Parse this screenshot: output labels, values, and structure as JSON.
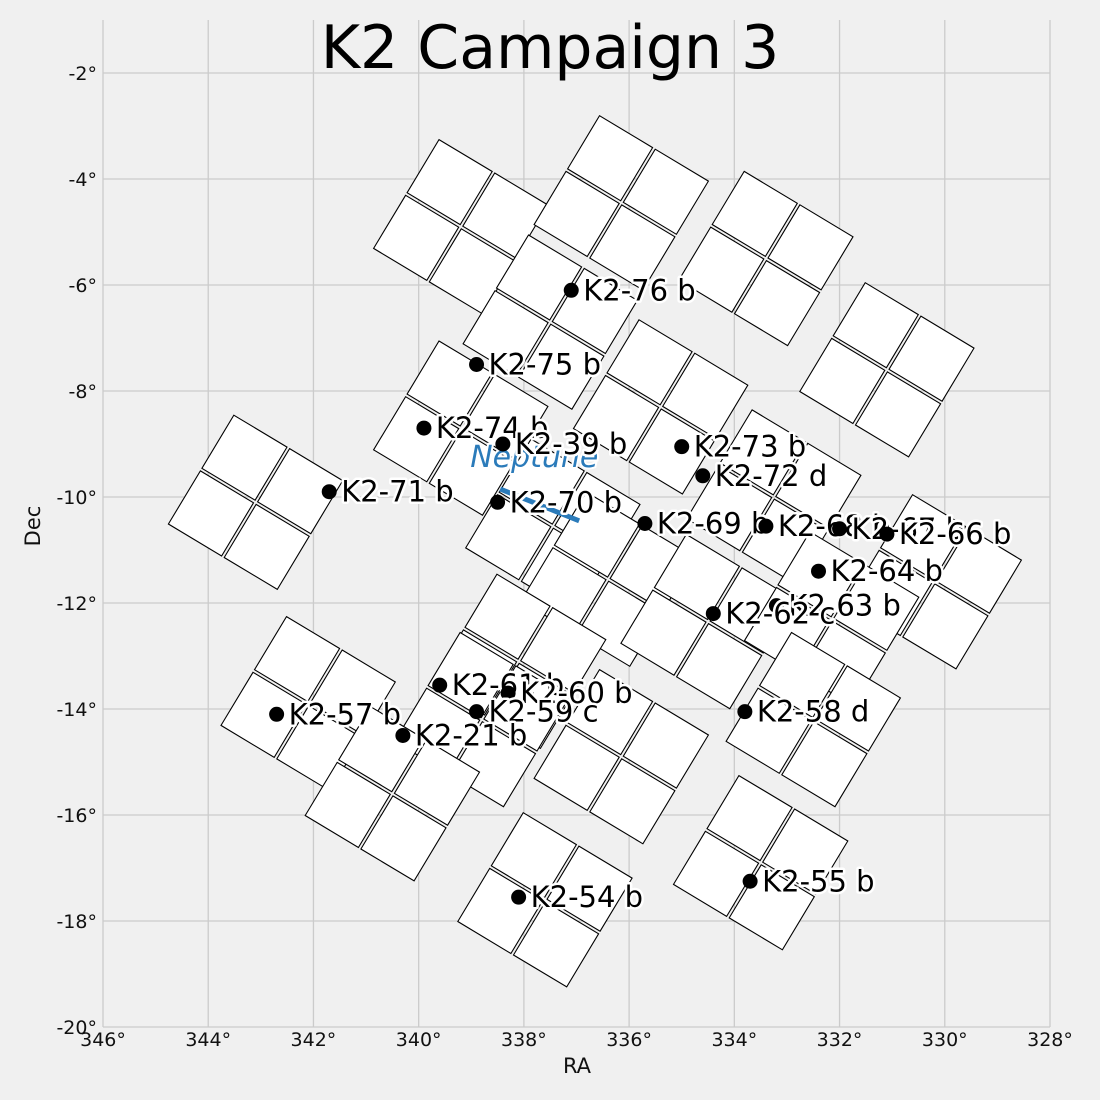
{
  "chart_data": {
    "type": "scatter",
    "title": "K2 Campaign 3",
    "xlabel": "RA",
    "ylabel": "Dec",
    "xlim": [
      346,
      328
    ],
    "ylim": [
      -20,
      -1
    ],
    "x_ticks": [
      346,
      344,
      342,
      340,
      338,
      336,
      334,
      332,
      330,
      328
    ],
    "y_ticks": [
      -2,
      -4,
      -6,
      -8,
      -10,
      -12,
      -14,
      -16,
      -18,
      -20
    ],
    "x_tick_labels": [
      "346°",
      "344°",
      "342°",
      "340°",
      "338°",
      "336°",
      "334°",
      "332°",
      "330°",
      "328°"
    ],
    "y_tick_labels": [
      "-2°",
      "-4°",
      "-6°",
      "-8°",
      "-10°",
      "-12°",
      "-14°",
      "-16°",
      "-18°",
      "-20°"
    ],
    "grid": true,
    "planets": [
      {
        "name": "K2-76 b",
        "ra": 337.1,
        "dec": -6.1
      },
      {
        "name": "K2-75 b",
        "ra": 338.9,
        "dec": -7.5
      },
      {
        "name": "K2-74 b",
        "ra": 339.9,
        "dec": -8.7
      },
      {
        "name": "K2-39 b",
        "ra": 338.4,
        "dec": -9.0
      },
      {
        "name": "K2-73 b",
        "ra": 335.0,
        "dec": -9.05
      },
      {
        "name": "K2-72 d",
        "ra": 334.6,
        "dec": -9.6
      },
      {
        "name": "K2-71 b",
        "ra": 341.7,
        "dec": -9.9
      },
      {
        "name": "K2-70 b",
        "ra": 338.5,
        "dec": -10.1
      },
      {
        "name": "K2-69 b",
        "ra": 335.7,
        "dec": -10.5
      },
      {
        "name": "K2-68 b",
        "ra": 333.4,
        "dec": -10.55
      },
      {
        "name": "K2-67 b",
        "ra": 332.0,
        "dec": -10.6
      },
      {
        "name": "K2-66 b",
        "ra": 331.1,
        "dec": -10.7
      },
      {
        "name": "K2-64 b",
        "ra": 332.4,
        "dec": -11.4
      },
      {
        "name": "K2-63 b",
        "ra": 333.2,
        "dec": -12.05
      },
      {
        "name": "K2-62 c",
        "ra": 334.4,
        "dec": -12.2
      },
      {
        "name": "K2-61 b",
        "ra": 339.6,
        "dec": -13.55
      },
      {
        "name": "K2-60 b",
        "ra": 338.3,
        "dec": -13.7
      },
      {
        "name": "K2-59 c",
        "ra": 338.9,
        "dec": -14.05
      },
      {
        "name": "K2-58 d",
        "ra": 333.8,
        "dec": -14.05
      },
      {
        "name": "K2-57 b",
        "ra": 342.7,
        "dec": -14.1
      },
      {
        "name": "K2-21 b",
        "ra": 340.3,
        "dec": -14.5
      },
      {
        "name": "K2-55 b",
        "ra": 333.7,
        "dec": -17.25
      },
      {
        "name": "K2-54 b",
        "ra": 338.1,
        "dec": -17.55
      }
    ],
    "neptune": {
      "label": "Neptune",
      "color": "#2b7bba",
      "track": [
        [
          338.45,
          -9.85
        ],
        [
          336.95,
          -10.45
        ]
      ]
    },
    "ccd_modules": [
      {
        "ra": 339.2,
        "dec": -4.9
      },
      {
        "ra": 336.15,
        "dec": -4.45
      },
      {
        "ra": 333.4,
        "dec": -5.5
      },
      {
        "ra": 337.5,
        "dec": -6.7
      },
      {
        "ra": 331.1,
        "dec": -7.6
      },
      {
        "ra": 339.2,
        "dec": -8.7
      },
      {
        "ra": 335.4,
        "dec": -8.3
      },
      {
        "ra": 343.1,
        "dec": -10.1
      },
      {
        "ra": 337.45,
        "dec": -10.55
      },
      {
        "ra": 333.25,
        "dec": -10.0
      },
      {
        "ra": 330.2,
        "dec": -11.6
      },
      {
        "ra": 336.4,
        "dec": -11.55
      },
      {
        "ra": 334.5,
        "dec": -12.35
      },
      {
        "ra": 332.15,
        "dec": -12.3
      },
      {
        "ra": 338.1,
        "dec": -13.1
      },
      {
        "ra": 342.1,
        "dec": -13.9
      },
      {
        "ra": 338.8,
        "dec": -14.2
      },
      {
        "ra": 332.5,
        "dec": -14.2
      },
      {
        "ra": 340.5,
        "dec": -15.6
      },
      {
        "ra": 336.15,
        "dec": -14.9
      },
      {
        "ra": 333.5,
        "dec": -16.9
      },
      {
        "ra": 337.6,
        "dec": -17.6
      }
    ]
  }
}
